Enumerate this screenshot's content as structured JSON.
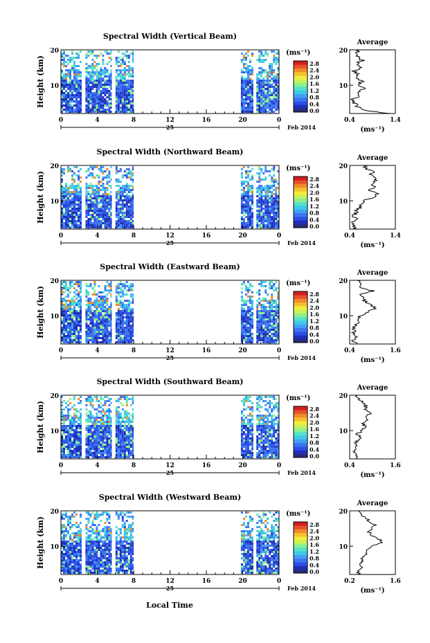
{
  "figure": {
    "xlabel": "Local Time",
    "date_label": "Feb 2014",
    "day_label": "25",
    "height_label": "Height (km)",
    "unit_label": "(ms⁻¹)",
    "avg_title": "Average",
    "avg_xlabel": "(ms⁻¹)",
    "colorbar_ticks": [
      "2.8",
      "2.4",
      "2.0",
      "1.6",
      "1.2",
      "0.8",
      "0.4",
      "0.0"
    ],
    "colorbar_colors": [
      "#2b2b7a",
      "#1f2fb8",
      "#2c4fe6",
      "#3c74f0",
      "#3fa0f5",
      "#3ec9ea",
      "#56e0c6",
      "#8df08f",
      "#c4f25c",
      "#f2ec3c",
      "#f5c030",
      "#f08a2a",
      "#e8502a",
      "#d01e1e"
    ]
  },
  "chart_data": [
    {
      "type": "heatmap",
      "title": "Spectral Width (Vertical Beam)",
      "xlabel": "Local Time",
      "ylabel": "Height (km)",
      "x_ticks": [
        "0",
        "4",
        "8",
        "12",
        "16",
        "20",
        "0"
      ],
      "y_ticks": [
        "20",
        "10"
      ],
      "xlim": [
        0,
        24
      ],
      "ylim": [
        2,
        20
      ],
      "data_intervals_hours": [
        [
          0,
          2.3
        ],
        [
          2.7,
          5.6
        ],
        [
          6.0,
          8.0
        ],
        [
          19.8,
          21.2
        ],
        [
          21.5,
          24
        ]
      ],
      "clim": [
        0.0,
        3.0
      ],
      "average_profile": {
        "title": "Average",
        "xlabel": "(ms⁻¹)",
        "xlim": [
          0.4,
          1.4
        ],
        "x_ticks": [
          "0.4",
          "1.4"
        ],
        "y_ticks": [
          "20",
          "10"
        ],
        "heights_km": [
          2,
          3,
          4,
          5,
          6,
          7,
          8,
          9,
          10,
          11,
          12,
          13,
          14,
          15,
          16,
          17,
          18,
          19,
          20
        ],
        "values": [
          1.25,
          0.72,
          0.55,
          0.5,
          0.48,
          0.62,
          0.58,
          0.7,
          0.6,
          0.66,
          0.55,
          0.58,
          0.5,
          0.62,
          0.55,
          0.68,
          0.58,
          0.52,
          0.62
        ]
      }
    },
    {
      "type": "heatmap",
      "title": "Spectral Width (Northward Beam)",
      "xlabel": "Local Time",
      "ylabel": "Height (km)",
      "x_ticks": [
        "0",
        "4",
        "8",
        "12",
        "16",
        "20",
        "0"
      ],
      "y_ticks": [
        "20",
        "10"
      ],
      "xlim": [
        0,
        24
      ],
      "ylim": [
        2,
        20
      ],
      "data_intervals_hours": [
        [
          0,
          2.3
        ],
        [
          2.7,
          5.6
        ],
        [
          6.0,
          8.0
        ],
        [
          19.8,
          21.2
        ],
        [
          21.5,
          24
        ]
      ],
      "clim": [
        0.0,
        3.0
      ],
      "average_profile": {
        "title": "Average",
        "xlabel": "(ms⁻¹)",
        "xlim": [
          0.4,
          1.4
        ],
        "x_ticks": [
          "0.4",
          "1.4"
        ],
        "y_ticks": [
          "20",
          "10"
        ],
        "heights_km": [
          2,
          3,
          4,
          5,
          6,
          7,
          8,
          9,
          10,
          11,
          12,
          13,
          14,
          15,
          16,
          17,
          18,
          19,
          20
        ],
        "values": [
          0.55,
          0.5,
          0.48,
          0.52,
          0.5,
          0.55,
          0.6,
          0.66,
          0.72,
          0.9,
          1.0,
          0.82,
          0.95,
          0.88,
          1.0,
          0.85,
          0.92,
          0.78,
          0.7
        ]
      }
    },
    {
      "type": "heatmap",
      "title": "Spectral Width (Eastward Beam)",
      "xlabel": "Local Time",
      "ylabel": "Height (km)",
      "x_ticks": [
        "0",
        "4",
        "8",
        "12",
        "16",
        "20",
        "0"
      ],
      "y_ticks": [
        "20",
        "10"
      ],
      "xlim": [
        0,
        24
      ],
      "ylim": [
        2,
        20
      ],
      "data_intervals_hours": [
        [
          0,
          2.3
        ],
        [
          2.7,
          5.6
        ],
        [
          6.0,
          8.0
        ],
        [
          19.8,
          21.2
        ],
        [
          21.5,
          24
        ]
      ],
      "clim": [
        0.0,
        3.0
      ],
      "average_profile": {
        "title": "Average",
        "xlabel": "(ms⁻¹)",
        "xlim": [
          0.4,
          1.6
        ],
        "x_ticks": [
          "0.4",
          "1.6"
        ],
        "y_ticks": [
          "20",
          "10"
        ],
        "heights_km": [
          2,
          3,
          4,
          5,
          6,
          7,
          8,
          9,
          10,
          11,
          12,
          13,
          14,
          15,
          16,
          17,
          18,
          19,
          20
        ],
        "values": [
          0.55,
          0.5,
          0.6,
          0.52,
          0.5,
          0.55,
          0.62,
          0.58,
          0.7,
          0.85,
          1.05,
          1.0,
          0.8,
          0.75,
          0.72,
          1.0,
          0.65,
          0.75,
          0.6
        ]
      }
    },
    {
      "type": "heatmap",
      "title": "Spectral Width (Southward Beam)",
      "xlabel": "Local Time",
      "ylabel": "Height (km)",
      "x_ticks": [
        "0",
        "4",
        "8",
        "12",
        "16",
        "20",
        "0"
      ],
      "y_ticks": [
        "20",
        "10"
      ],
      "xlim": [
        0,
        24
      ],
      "ylim": [
        2,
        20
      ],
      "data_intervals_hours": [
        [
          0,
          2.3
        ],
        [
          2.7,
          5.6
        ],
        [
          6.0,
          8.0
        ],
        [
          19.8,
          21.2
        ],
        [
          21.5,
          24
        ]
      ],
      "clim": [
        0.0,
        3.0
      ],
      "average_profile": {
        "title": "Average",
        "xlabel": "(ms⁻¹)",
        "xlim": [
          0.4,
          1.6
        ],
        "x_ticks": [
          "0.4",
          "1.6"
        ],
        "y_ticks": [
          "20",
          "10"
        ],
        "heights_km": [
          2,
          3,
          4,
          5,
          6,
          7,
          8,
          9,
          10,
          11,
          12,
          13,
          14,
          15,
          16,
          17,
          18,
          19,
          20
        ],
        "values": [
          0.55,
          0.6,
          0.52,
          0.62,
          0.55,
          0.6,
          0.68,
          0.6,
          0.72,
          0.8,
          0.75,
          0.9,
          0.85,
          0.95,
          0.8,
          0.85,
          0.75,
          0.65,
          0.6
        ]
      }
    },
    {
      "type": "heatmap",
      "title": "Spectral Width (Westward Beam)",
      "xlabel": "Local Time",
      "ylabel": "Height (km)",
      "x_ticks": [
        "0",
        "4",
        "8",
        "12",
        "16",
        "20",
        "0"
      ],
      "y_ticks": [
        "20",
        "10"
      ],
      "xlim": [
        0,
        24
      ],
      "ylim": [
        2,
        20
      ],
      "data_intervals_hours": [
        [
          0,
          2.3
        ],
        [
          2.7,
          5.6
        ],
        [
          6.0,
          8.0
        ],
        [
          19.8,
          21.2
        ],
        [
          21.5,
          24
        ]
      ],
      "clim": [
        0.0,
        3.0
      ],
      "average_profile": {
        "title": "Average",
        "xlabel": "(ms⁻¹)",
        "xlim": [
          0.2,
          1.6
        ],
        "x_ticks": [
          "0.2",
          "1.6"
        ],
        "y_ticks": [
          "20",
          "10"
        ],
        "heights_km": [
          2,
          3,
          4,
          5,
          6,
          7,
          8,
          9,
          10,
          11,
          12,
          13,
          14,
          15,
          16,
          17,
          18,
          19,
          20
        ],
        "values": [
          0.5,
          0.45,
          0.55,
          0.5,
          0.62,
          0.58,
          0.7,
          0.75,
          0.9,
          1.2,
          1.1,
          0.85,
          0.8,
          0.9,
          1.0,
          0.8,
          0.7,
          0.55,
          0.5
        ]
      }
    }
  ]
}
